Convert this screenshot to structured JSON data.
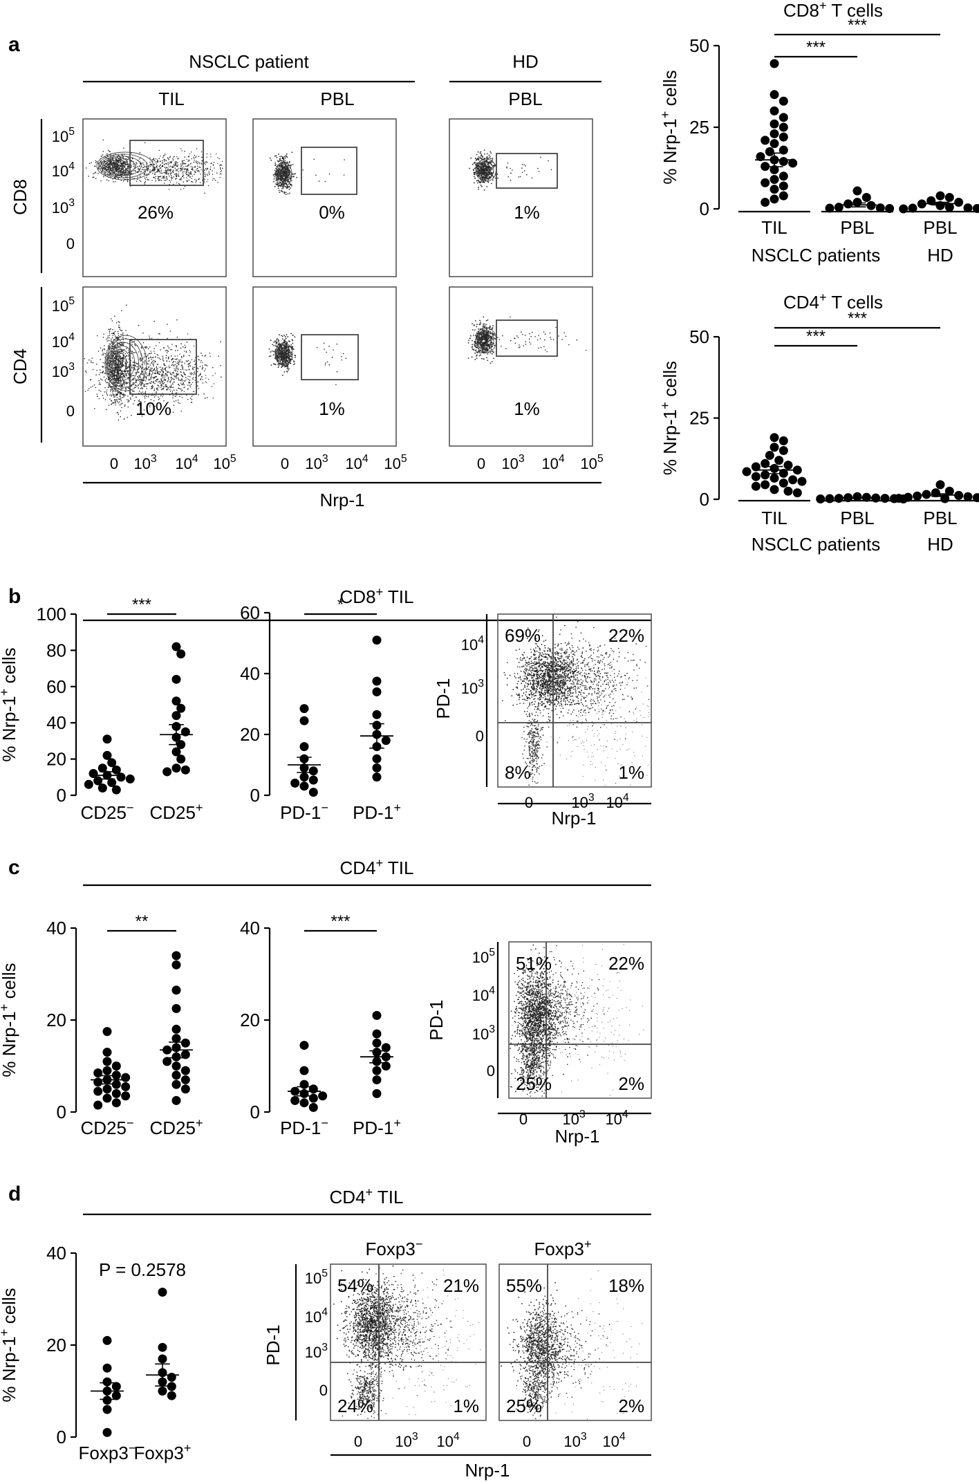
{
  "panels": {
    "a": {
      "letter": "a",
      "group_nsclc": "NSCLC patient",
      "group_hd": "HD",
      "col_labels": [
        "TIL",
        "PBL",
        "PBL"
      ],
      "row_labels": [
        "CD8",
        "CD4"
      ],
      "percents_cd8": [
        "26%",
        "0%",
        "1%"
      ],
      "percents_cd4": [
        "10%",
        "1%",
        "1%"
      ],
      "y_ticks": [
        "10^5",
        "10^4",
        "10^3",
        "0"
      ],
      "x_ticks": [
        "0",
        "10^3",
        "10^4",
        "10^5"
      ],
      "x_axis_label": "Nrp-1"
    },
    "b": {
      "letter": "b",
      "title": "CD8+ TIL",
      "flow_percents": {
        "ul": "69%",
        "ur": "22%",
        "ll": "8%",
        "lr": "1%"
      },
      "flow_y_label": "PD-1",
      "flow_x_label": "Nrp-1",
      "flow_y_ticks": [
        "10^4",
        "10^3",
        "0"
      ],
      "flow_x_ticks": [
        "0",
        "10^3",
        "10^4"
      ]
    },
    "c": {
      "letter": "c",
      "title": "CD4+ TIL",
      "flow_percents": {
        "ul": "51%",
        "ur": "22%",
        "ll": "25%",
        "lr": "2%"
      },
      "flow_y_label": "PD-1",
      "flow_x_label": "Nrp-1",
      "flow_y_ticks": [
        "10^5",
        "10^4",
        "10^3",
        "0"
      ],
      "flow_x_ticks": [
        "0",
        "10^3",
        "10^4"
      ]
    },
    "d": {
      "letter": "d",
      "title": "CD4+ TIL",
      "p_value": "P = 0.2578",
      "flow_titles": [
        "Foxp3−",
        "Foxp3+"
      ],
      "flow_percents": [
        {
          "ul": "54%",
          "ur": "21%",
          "ll": "24%",
          "lr": "1%"
        },
        {
          "ul": "55%",
          "ur": "18%",
          "ll": "25%",
          "lr": "2%"
        }
      ],
      "flow_y_label": "PD-1",
      "flow_x_label": "Nrp-1",
      "flow_y_ticks": [
        "10^5",
        "10^4",
        "10^3",
        "0"
      ],
      "flow_x_ticks": [
        "0",
        "10^3",
        "10^4"
      ]
    }
  },
  "chart_data": [
    {
      "id": "a-cd8",
      "type": "scatter",
      "title": "CD8+ T cells",
      "ylabel": "% Nrp-1+ cells",
      "ylim": [
        0,
        50
      ],
      "yticks": [
        0,
        25,
        50
      ],
      "categories": [
        "TIL",
        "PBL",
        "PBL"
      ],
      "groups": [
        {
          "label": "NSCLC patients",
          "span": [
            0,
            1
          ]
        },
        {
          "label": "HD",
          "span": [
            2,
            2
          ]
        }
      ],
      "series": [
        {
          "values": [
            44.5,
            35,
            33,
            30,
            28,
            26,
            25,
            23,
            22,
            21,
            20,
            18,
            17.5,
            16,
            15,
            14.5,
            14,
            13,
            12,
            10,
            9,
            8,
            7,
            6,
            4,
            3,
            2
          ]
        },
        {
          "values": [
            5.5,
            3.5,
            2,
            1.5,
            1,
            0.5,
            0.3,
            0.2,
            0.1
          ]
        },
        {
          "values": [
            4,
            3.5,
            2.5,
            2,
            1.5,
            1,
            0.5,
            0.3,
            0.2,
            0.1,
            0
          ]
        }
      ],
      "means": [
        15,
        1.2,
        1.6
      ],
      "sem": [
        2.1,
        0.6,
        0.4
      ],
      "significance": [
        {
          "from": 0,
          "to": 1,
          "label": "***"
        },
        {
          "from": 0,
          "to": 2,
          "label": "***"
        }
      ]
    },
    {
      "id": "a-cd4",
      "type": "scatter",
      "title": "CD4+ T cells",
      "ylabel": "% Nrp-1+ cells",
      "ylim": [
        0,
        50
      ],
      "yticks": [
        0,
        25,
        50
      ],
      "categories": [
        "TIL",
        "PBL",
        "PBL"
      ],
      "groups": [
        {
          "label": "NSCLC patients",
          "span": [
            0,
            1
          ]
        },
        {
          "label": "HD",
          "span": [
            2,
            2
          ]
        }
      ],
      "series": [
        {
          "values": [
            19,
            18,
            16,
            15,
            13.5,
            12,
            11,
            10.5,
            10,
            9.5,
            9,
            8.5,
            8,
            7.5,
            7,
            6.5,
            6,
            5.5,
            5,
            4.5,
            4,
            3,
            2.5,
            2
          ]
        },
        {
          "values": [
            0.8,
            0.6,
            0.5,
            0.4,
            0.3,
            0.3,
            0.2,
            0.2,
            0.1,
            0.1
          ]
        },
        {
          "values": [
            4.5,
            2.5,
            2,
            1.5,
            1.2,
            1,
            0.8,
            0.6,
            0.5,
            0.3,
            0.2
          ]
        }
      ],
      "means": [
        9,
        0.4,
        1.3
      ],
      "sem": [
        1.1,
        0.1,
        0.4
      ],
      "significance": [
        {
          "from": 0,
          "to": 1,
          "label": "***"
        },
        {
          "from": 0,
          "to": 2,
          "label": "***"
        }
      ]
    },
    {
      "id": "b-cd25",
      "type": "scatter",
      "ylabel": "% Nrp-1+ cells",
      "ylim": [
        0,
        100
      ],
      "yticks": [
        0,
        20,
        40,
        60,
        80,
        100
      ],
      "categories": [
        "CD25−",
        "CD25+"
      ],
      "series": [
        {
          "values": [
            31,
            22,
            18,
            15,
            14,
            12,
            11,
            10,
            9,
            8,
            7,
            6,
            4,
            3
          ]
        },
        {
          "values": [
            82,
            78,
            64,
            52,
            48,
            44,
            38,
            35,
            32,
            28,
            24,
            20,
            15,
            14,
            13
          ]
        }
      ],
      "means": [
        11,
        33.5
      ],
      "sem": [
        2,
        5.5
      ],
      "significance": [
        {
          "from": 0,
          "to": 1,
          "label": "***"
        }
      ]
    },
    {
      "id": "b-pd1",
      "type": "scatter",
      "ylabel": "",
      "ylim": [
        0,
        60
      ],
      "yticks": [
        0,
        20,
        40,
        60
      ],
      "categories": [
        "PD-1−",
        "PD-1+"
      ],
      "series": [
        {
          "values": [
            28.5,
            24.5,
            16,
            12,
            9,
            8,
            6,
            5,
            4,
            3,
            1
          ]
        },
        {
          "values": [
            51,
            37.5,
            34,
            26.5,
            23,
            20,
            18,
            16,
            12,
            9,
            6
          ]
        }
      ],
      "means": [
        10,
        19.5
      ],
      "sem": [
        2.5,
        4
      ],
      "significance": [
        {
          "from": 0,
          "to": 1,
          "label": "*"
        }
      ]
    },
    {
      "id": "c-cd25",
      "type": "scatter",
      "ylabel": "% Nrp-1+ cells",
      "ylim": [
        0,
        40
      ],
      "yticks": [
        0,
        20,
        40
      ],
      "categories": [
        "CD25−",
        "CD25+"
      ],
      "series": [
        {
          "values": [
            17.5,
            13,
            11,
            10,
            9,
            8.5,
            8,
            7.5,
            7,
            6.5,
            6,
            5.5,
            5,
            4.5,
            4,
            3.5,
            3,
            2,
            1.5
          ]
        },
        {
          "values": [
            34,
            32,
            26.5,
            22.5,
            18,
            16,
            15,
            14,
            13.5,
            12.5,
            12,
            11,
            10,
            9,
            8,
            7,
            6,
            5,
            2.5
          ]
        }
      ],
      "means": [
        7,
        13.5
      ],
      "sem": [
        0.9,
        1.7
      ],
      "significance": [
        {
          "from": 0,
          "to": 1,
          "label": "**"
        }
      ]
    },
    {
      "id": "c-pd1",
      "type": "scatter",
      "ylabel": "",
      "ylim": [
        0,
        40
      ],
      "yticks": [
        0,
        20,
        40
      ],
      "categories": [
        "PD-1−",
        "PD-1+"
      ],
      "series": [
        {
          "values": [
            14.5,
            9,
            6,
            5,
            4.5,
            4,
            3.5,
            3,
            2.5,
            2,
            1
          ]
        },
        {
          "values": [
            21,
            17,
            15,
            14,
            13,
            12,
            11,
            10,
            9,
            7,
            4
          ]
        }
      ],
      "means": [
        4.5,
        12
      ],
      "sem": [
        1,
        1.3
      ],
      "significance": [
        {
          "from": 0,
          "to": 1,
          "label": "***"
        }
      ]
    },
    {
      "id": "d-foxp3",
      "type": "scatter",
      "ylabel": "% Nrp-1+ cells",
      "ylim": [
        0,
        40
      ],
      "yticks": [
        0,
        20,
        40
      ],
      "categories": [
        "Foxp3−",
        "Foxp3+"
      ],
      "series": [
        {
          "values": [
            21,
            15,
            12,
            11,
            10,
            9,
            8,
            6,
            1
          ]
        },
        {
          "values": [
            31.5,
            19.5,
            17,
            14,
            13,
            12,
            11,
            10,
            9
          ]
        }
      ],
      "means": [
        10,
        13.5
      ],
      "sem": [
        1.8,
        2.4
      ]
    }
  ]
}
